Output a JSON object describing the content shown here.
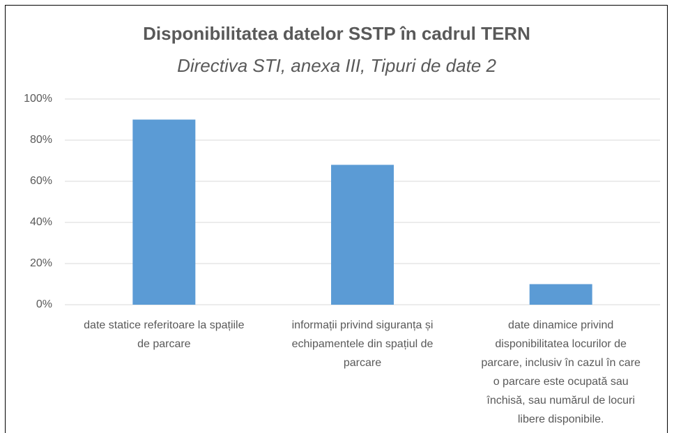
{
  "chart_data": {
    "type": "bar",
    "title": "Disponibilitatea datelor SSTP în cadrul TERN",
    "subtitle": "Directiva STI, anexa III, Tipuri de date 2",
    "categories": [
      "date statice referitoare la spațiile de parcare",
      "informații privind siguranța și echipamentele din spațiul de parcare",
      "date dinamice privind disponibilitatea locurilor de parcare, inclusiv în cazul în care o parcare este ocupată sau închisă, sau numărul de locuri libere disponibile."
    ],
    "values": [
      90,
      68,
      10
    ],
    "color": "#5b9bd5",
    "ylim": [
      0,
      100
    ],
    "yticks": [
      {
        "value": 0,
        "label": "0%"
      },
      {
        "value": 20,
        "label": "20%"
      },
      {
        "value": 40,
        "label": "40%"
      },
      {
        "value": 60,
        "label": "60%"
      },
      {
        "value": 80,
        "label": "80%"
      },
      {
        "value": 100,
        "label": "100%"
      }
    ],
    "grid": true
  }
}
